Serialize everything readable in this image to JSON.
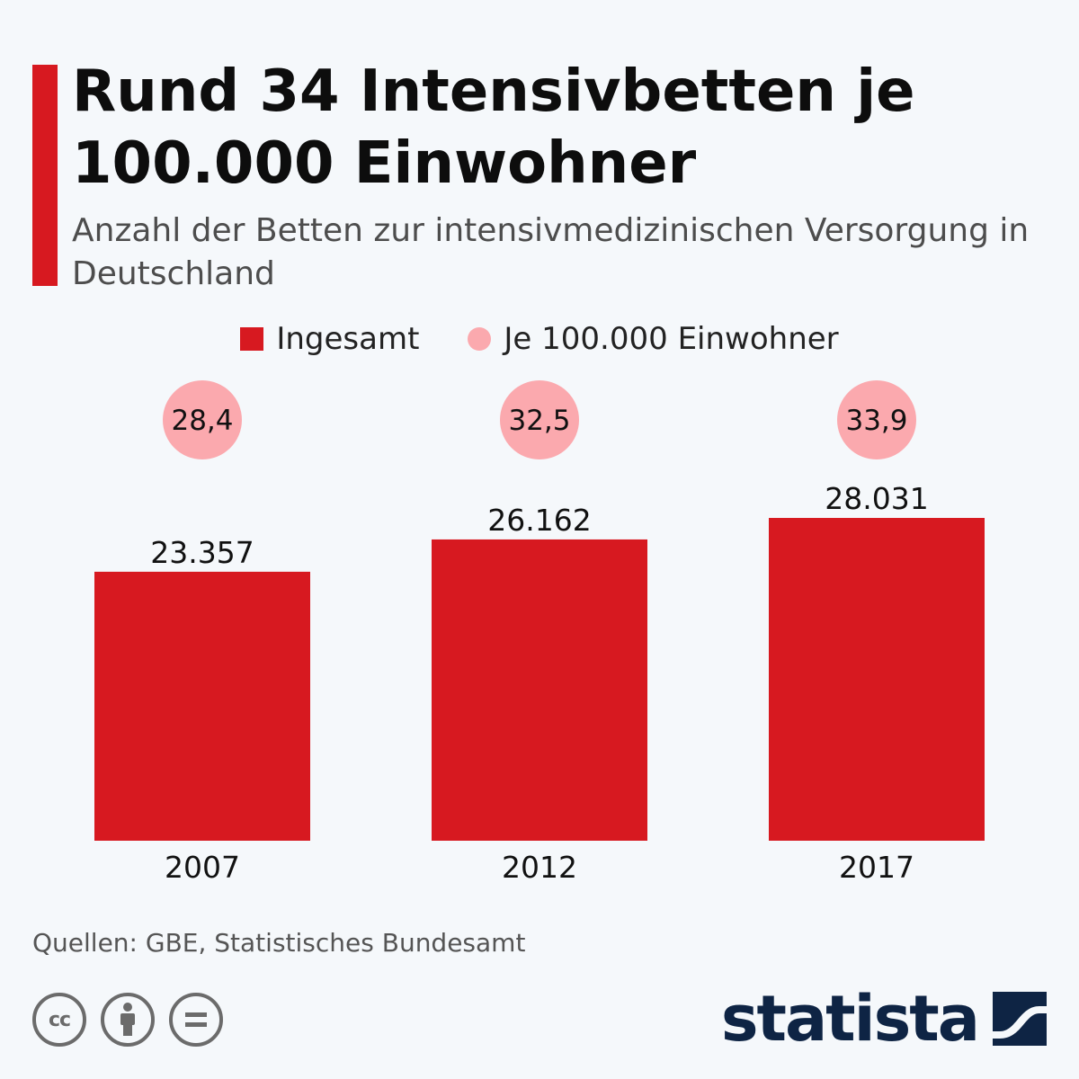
{
  "header": {
    "title": "Rund 34 Intensivbetten je 100.000 Einwohner",
    "subtitle": "Anzahl der Betten zur intensivmedizinischen Versorgung in Deutschland"
  },
  "legend": {
    "items": [
      {
        "label": "Ingesamt",
        "color": "#d71920",
        "shape": "square"
      },
      {
        "label": "Je 100.000 Einwohner",
        "color": "#fba9ae",
        "shape": "circle"
      }
    ]
  },
  "chart_data": {
    "type": "bar",
    "categories": [
      "2007",
      "2012",
      "2017"
    ],
    "series": [
      {
        "name": "Ingesamt",
        "values": [
          23357,
          26162,
          28031
        ],
        "labels": [
          "23.357",
          "26.162",
          "28.031"
        ],
        "color": "#d71920"
      },
      {
        "name": "Je 100.000 Einwohner",
        "values": [
          28.4,
          32.5,
          33.9
        ],
        "labels": [
          "28,4",
          "32,5",
          "33,9"
        ],
        "color": "#fba9ae"
      }
    ],
    "title": "Rund 34 Intensivbetten je 100.000 Einwohner",
    "subtitle": "Anzahl der Betten zur intensivmedizinischen Versorgung in Deutschland",
    "xlabel": "",
    "ylabel": "",
    "ylim": [
      0,
      28500
    ],
    "grid": false,
    "legend_position": "top-center"
  },
  "footer": {
    "source": "Quellen: GBE, Statistisches Bundesamt",
    "license_icons": [
      "cc-icon",
      "attribution-icon",
      "no-derivatives-icon"
    ],
    "license_cc_text": "cc",
    "logo_text": "statista"
  },
  "colors": {
    "accent": "#d71920",
    "bubble": "#fba9ae",
    "brand": "#0e2444",
    "background": "#f5f8fb"
  }
}
